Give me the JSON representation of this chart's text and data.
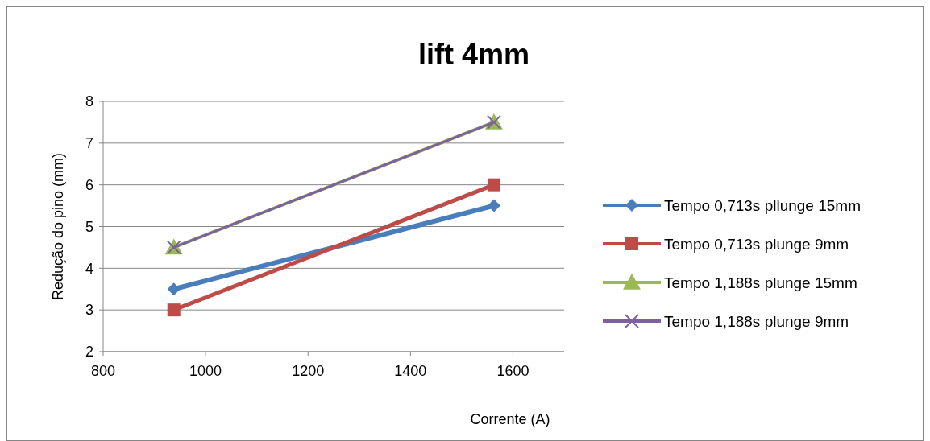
{
  "chart_data": {
    "type": "line",
    "title": "lift 4mm",
    "xlabel": "Corrente (A)",
    "ylabel": "Redução do pino (mm)",
    "x": [
      938,
      1563
    ],
    "xlim": [
      800,
      1700
    ],
    "xticks": [
      800,
      1000,
      1200,
      1400,
      1600
    ],
    "ylim": [
      2,
      8
    ],
    "yticks": [
      2,
      3,
      4,
      5,
      6,
      7,
      8
    ],
    "grid": "y",
    "legend": "right",
    "series": [
      {
        "name": "Tempo 0,713s pllunge 15mm",
        "color": "#4a7ebb",
        "marker": "diamond",
        "values": [
          3.5,
          5.5
        ]
      },
      {
        "name": "Tempo 0,713s plunge 9mm",
        "color": "#be4b48",
        "marker": "square",
        "values": [
          3,
          6
        ]
      },
      {
        "name": "Tempo 1,188s plunge 15mm",
        "color": "#98b954",
        "marker": "triangle",
        "values": [
          4.5,
          7.5
        ]
      },
      {
        "name": "Tempo 1,188s plunge 9mm",
        "color": "#7d60a0",
        "marker": "cross",
        "values": [
          4.5,
          7.5
        ]
      }
    ]
  }
}
